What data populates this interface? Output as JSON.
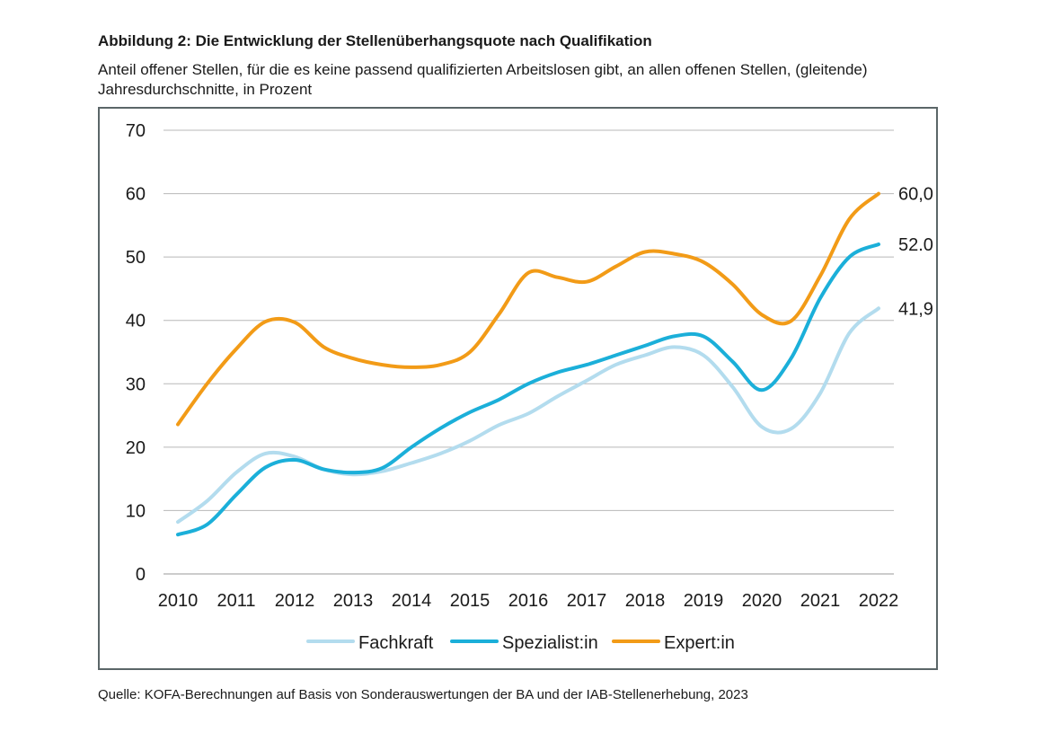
{
  "chart_data": {
    "type": "line",
    "title": "Abbildung 2: Die Entwicklung der Stellenüberhangsquote nach Qualifikation",
    "subtitle": "Anteil offener Stellen, für die es keine passend qualifizierten Arbeitslosen gibt, an allen offenen Stellen, (gleitende) Jahresdurchschnitte, in Prozent",
    "xlabel": "",
    "ylabel": "",
    "ylim": [
      0,
      70
    ],
    "yticks": [
      0,
      10,
      20,
      30,
      40,
      50,
      60,
      70
    ],
    "xlim": [
      2010,
      2022
    ],
    "xticks": [
      2010,
      2011,
      2012,
      2013,
      2014,
      2015,
      2016,
      2017,
      2018,
      2019,
      2020,
      2021,
      2022
    ],
    "grid": true,
    "legend_position": "bottom",
    "series": [
      {
        "name": "Fachkraft",
        "color": "#b3dcee",
        "x": [
          2010,
          2010.5,
          2011,
          2011.5,
          2012,
          2012.5,
          2013,
          2013.5,
          2014,
          2014.5,
          2015,
          2015.5,
          2016,
          2016.5,
          2017,
          2017.5,
          2018,
          2018.5,
          2019,
          2019.5,
          2020,
          2020.5,
          2021,
          2021.5,
          2022
        ],
        "values": [
          8.2,
          11.5,
          16.0,
          19.0,
          18.5,
          16.5,
          15.7,
          16.2,
          17.5,
          19.0,
          21.0,
          23.5,
          25.3,
          28.0,
          30.5,
          33.0,
          34.5,
          35.8,
          34.5,
          29.5,
          23.2,
          22.9,
          28.5,
          38.0,
          41.9
        ],
        "end_label": "41,9"
      },
      {
        "name": "Spezialist:in",
        "color": "#1bafd9",
        "x": [
          2010,
          2010.5,
          2011,
          2011.5,
          2012,
          2012.5,
          2013,
          2013.5,
          2014,
          2014.5,
          2015,
          2015.5,
          2016,
          2016.5,
          2017,
          2017.5,
          2018,
          2018.5,
          2019,
          2019.5,
          2020,
          2020.5,
          2021,
          2021.5,
          2022
        ],
        "values": [
          6.2,
          7.8,
          12.5,
          16.8,
          18.0,
          16.5,
          16.0,
          16.7,
          20.0,
          23.0,
          25.5,
          27.5,
          30.0,
          31.8,
          33.0,
          34.5,
          36.0,
          37.5,
          37.5,
          33.5,
          29.0,
          34.0,
          43.5,
          50.0,
          52.0
        ],
        "end_label": "52.0"
      },
      {
        "name": "Expert:in",
        "color": "#f29b17",
        "x": [
          2010,
          2010.5,
          2011,
          2011.5,
          2012,
          2012.5,
          2013,
          2013.5,
          2014,
          2014.5,
          2015,
          2015.5,
          2016,
          2016.5,
          2017,
          2017.5,
          2018,
          2018.5,
          2019,
          2019.5,
          2020,
          2020.5,
          2021,
          2021.5,
          2022
        ],
        "values": [
          23.6,
          30.0,
          35.5,
          39.8,
          39.7,
          35.8,
          34.0,
          33.0,
          32.6,
          33.0,
          35.0,
          41.0,
          47.5,
          46.8,
          46.1,
          48.5,
          50.8,
          50.5,
          49.2,
          45.7,
          40.9,
          39.9,
          47.0,
          56.0,
          60.0
        ],
        "end_label": "60,0"
      }
    ]
  },
  "source_text": "Quelle: KOFA-Berechnungen auf Basis von Sonderauswertungen der BA und der IAB-Stellenerhebung, 2023"
}
